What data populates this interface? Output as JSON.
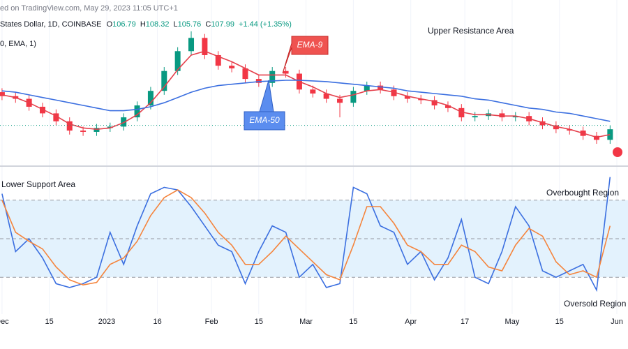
{
  "header": {
    "source": "ed on TradingView.com, May 29, 2023 11:05 UTC+1",
    "symbol": "States Dollar, 1D, COINBASE",
    "ohlc": [
      {
        "label": "O",
        "value": "106.79"
      },
      {
        "label": "H",
        "value": "108.32"
      },
      {
        "label": "L",
        "value": "105.76"
      },
      {
        "label": "C",
        "value": "107.99"
      }
    ],
    "change": "+1.44 (+1.35%)",
    "indicator": "0, EMA, 1)"
  },
  "chart_data": [
    {
      "type": "candlestick",
      "up_color": "#089981",
      "down_color": "#f23645",
      "ylim": [
        105.6,
        117.2
      ],
      "xlim": [
        -0.6,
        185.3
      ],
      "last_price": 107.99,
      "x": [
        0,
        4,
        8,
        12,
        16,
        20,
        24,
        28,
        32,
        36,
        40,
        44,
        48,
        52,
        56,
        60,
        64,
        68,
        72,
        76,
        80,
        84,
        88,
        92,
        96,
        100,
        104,
        108,
        112,
        116,
        120,
        124,
        128,
        132,
        136,
        140,
        144,
        148,
        152,
        156,
        160,
        164,
        168,
        172,
        176,
        180
      ],
      "open": [
        110.5,
        110.2,
        110.0,
        109.4,
        108.9,
        108.3,
        107.6,
        107.5,
        107.8,
        107.9,
        108.6,
        109.5,
        110.6,
        112.1,
        113.6,
        114.6,
        113.3,
        112.5,
        112.3,
        111.5,
        111.2,
        112.1,
        111.9,
        110.7,
        110.4,
        110.0,
        109.7,
        110.6,
        111.0,
        110.7,
        110.2,
        110.0,
        109.9,
        109.5,
        109.3,
        108.6,
        108.7,
        108.9,
        108.6,
        108.7,
        108.3,
        108.0,
        107.7,
        107.6,
        107.2,
        106.9
      ],
      "high": [
        110.8,
        110.5,
        110.3,
        109.7,
        109.2,
        108.6,
        107.9,
        108.1,
        108.2,
        108.9,
        109.8,
        110.9,
        112.4,
        113.9,
        115.1,
        114.9,
        113.6,
        112.8,
        112.6,
        111.8,
        112.4,
        112.4,
        112.2,
        111.0,
        110.7,
        110.3,
        110.9,
        111.3,
        111.3,
        111.0,
        110.5,
        110.3,
        110.2,
        109.8,
        109.6,
        109.0,
        109.2,
        109.2,
        109.0,
        109.0,
        108.6,
        108.3,
        108.0,
        107.9,
        107.5,
        108.0
      ],
      "low": [
        109.9,
        109.7,
        109.1,
        108.6,
        108.0,
        107.3,
        107.2,
        107.2,
        107.5,
        107.6,
        108.3,
        109.2,
        110.3,
        111.8,
        113.3,
        113.0,
        112.2,
        112.0,
        111.2,
        110.9,
        110.9,
        111.6,
        110.4,
        110.1,
        109.7,
        108.6,
        109.4,
        110.3,
        110.4,
        109.9,
        109.7,
        109.6,
        109.2,
        109.0,
        108.3,
        108.3,
        108.4,
        108.3,
        108.3,
        108.0,
        107.7,
        107.4,
        107.3,
        106.9,
        106.6,
        106.6
      ],
      "close": [
        110.2,
        110.0,
        109.4,
        108.9,
        108.3,
        107.6,
        107.5,
        107.8,
        107.9,
        108.6,
        109.5,
        110.6,
        112.1,
        113.6,
        114.6,
        113.3,
        112.5,
        112.3,
        111.5,
        111.2,
        112.1,
        111.9,
        110.7,
        110.4,
        110.0,
        109.7,
        110.6,
        111.0,
        110.7,
        110.2,
        110.0,
        109.9,
        109.5,
        109.3,
        108.6,
        108.7,
        108.9,
        108.6,
        108.7,
        108.3,
        108.0,
        107.7,
        107.6,
        107.2,
        106.9,
        107.7
      ],
      "lines": [
        {
          "color": "#e5404c",
          "values": [
            110.3,
            110.1,
            109.7,
            109.2,
            108.7,
            108.1,
            107.8,
            107.7,
            107.8,
            108.2,
            108.8,
            109.7,
            110.9,
            112.2,
            113.3,
            113.6,
            113.2,
            112.8,
            112.3,
            111.8,
            111.8,
            111.8,
            111.3,
            110.9,
            110.4,
            110.1,
            110.3,
            110.6,
            110.7,
            110.5,
            110.2,
            110.0,
            109.8,
            109.5,
            109.0,
            108.8,
            108.8,
            108.7,
            108.7,
            108.5,
            108.2,
            107.9,
            107.7,
            107.4,
            107.1,
            107.3
          ]
        },
        {
          "color": "#3b6fe0",
          "values": [
            110.6,
            110.5,
            110.3,
            110.1,
            109.9,
            109.7,
            109.5,
            109.3,
            109.1,
            109.1,
            109.2,
            109.4,
            109.7,
            110.1,
            110.5,
            110.8,
            111.0,
            111.1,
            111.2,
            111.3,
            111.35,
            111.4,
            111.4,
            111.35,
            111.3,
            111.2,
            111.1,
            111.0,
            110.9,
            110.8,
            110.6,
            110.5,
            110.4,
            110.3,
            110.2,
            110.0,
            109.9,
            109.7,
            109.5,
            109.3,
            109.2,
            109.0,
            108.9,
            108.7,
            108.5,
            108.3
          ]
        }
      ],
      "annotations": [
        "Upper Resistance Area",
        "EMA-9",
        "EMA-50"
      ]
    },
    {
      "type": "line",
      "ylim": [
        0,
        100
      ],
      "xlim": [
        -0.6,
        185.3
      ],
      "levels": [
        80,
        50,
        20
      ],
      "band_color": "#e3f2fd",
      "x": [
        0,
        4,
        8,
        12,
        16,
        20,
        24,
        28,
        32,
        36,
        40,
        44,
        48,
        52,
        56,
        60,
        64,
        68,
        72,
        76,
        80,
        84,
        88,
        92,
        96,
        100,
        104,
        108,
        112,
        116,
        120,
        124,
        128,
        132,
        136,
        140,
        144,
        148,
        152,
        156,
        160,
        164,
        168,
        172,
        176,
        180
      ],
      "xticks": [
        {
          "value": 0,
          "label": "Dec"
        },
        {
          "value": 14,
          "label": "15"
        },
        {
          "value": 31,
          "label": "2023"
        },
        {
          "value": 46,
          "label": "16"
        },
        {
          "value": 62,
          "label": "Feb"
        },
        {
          "value": 76,
          "label": "15"
        },
        {
          "value": 90,
          "label": "Mar"
        },
        {
          "value": 104,
          "label": "15"
        },
        {
          "value": 121,
          "label": "Apr"
        },
        {
          "value": 137,
          "label": "17"
        },
        {
          "value": 151,
          "label": "May"
        },
        {
          "value": 165,
          "label": "15"
        },
        {
          "value": 182,
          "label": "Jun"
        }
      ],
      "lines": [
        {
          "color": "#3b6fe0",
          "values": [
            85,
            40,
            50,
            35,
            15,
            12,
            15,
            20,
            55,
            30,
            60,
            85,
            90,
            88,
            75,
            60,
            45,
            40,
            15,
            40,
            60,
            55,
            20,
            30,
            12,
            15,
            90,
            85,
            60,
            55,
            30,
            40,
            18,
            35,
            65,
            20,
            15,
            40,
            75,
            60,
            25,
            20,
            25,
            30,
            10,
            98
          ]
        },
        {
          "color": "#f5843c",
          "values": [
            80,
            55,
            48,
            42,
            28,
            18,
            14,
            16,
            30,
            35,
            48,
            68,
            82,
            88,
            82,
            70,
            55,
            45,
            30,
            30,
            40,
            52,
            42,
            32,
            22,
            18,
            45,
            75,
            75,
            62,
            45,
            40,
            30,
            30,
            45,
            40,
            28,
            25,
            45,
            58,
            52,
            32,
            22,
            25,
            20,
            60
          ]
        }
      ],
      "annotations": [
        "Lower Support Area",
        "Overbought Region",
        "Oversold Region"
      ]
    }
  ]
}
